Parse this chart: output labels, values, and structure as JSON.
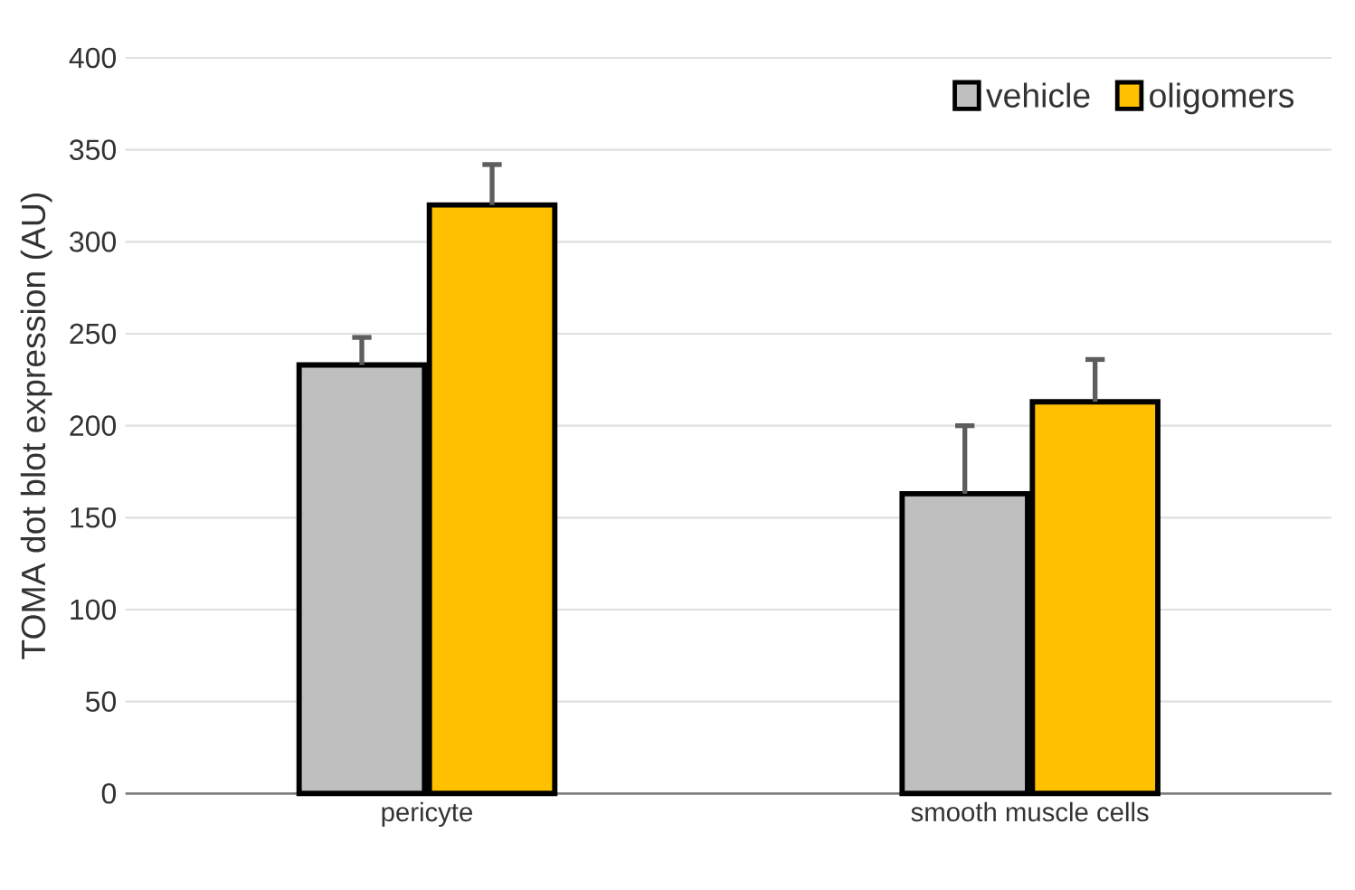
{
  "chart_data": {
    "type": "bar",
    "ylabel": "TOMA dot blot expression (AU)",
    "categories": [
      "pericyte",
      "smooth muscle cells"
    ],
    "series": [
      {
        "name": "vehicle",
        "color": "#bfbfbf",
        "values": [
          233,
          163
        ],
        "errors": [
          [
            233,
            248
          ],
          [
            163,
            200
          ]
        ]
      },
      {
        "name": "oligomers",
        "color": "#ffc000",
        "values": [
          320,
          213
        ],
        "errors": [
          [
            320,
            342
          ],
          [
            213,
            236
          ]
        ]
      }
    ],
    "ylim": [
      0,
      400
    ],
    "yticks": [
      0,
      50,
      100,
      150,
      200,
      250,
      300,
      350,
      400
    ],
    "grid": "y",
    "legend": "top right"
  }
}
